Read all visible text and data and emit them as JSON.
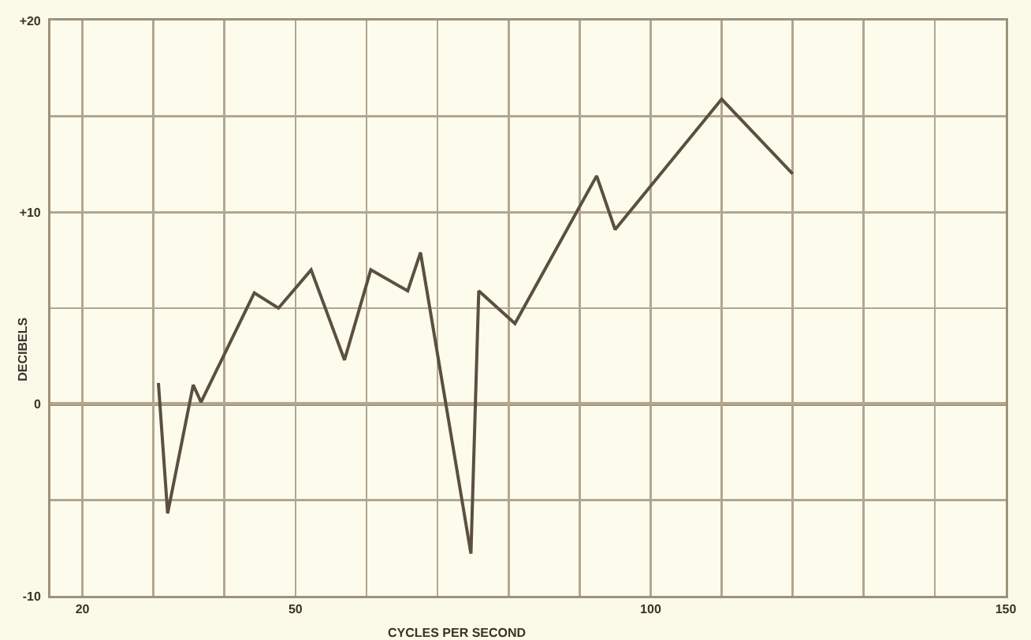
{
  "chart_data": {
    "type": "line",
    "xlabel": "CYCLES PER SECOND",
    "ylabel": "DECIBELS",
    "x": [
      30.7,
      32,
      35.6,
      36.7,
      44.2,
      47.6,
      52.2,
      56.9,
      60.6,
      65.8,
      67.6,
      74.7,
      75.8,
      80.9,
      92.4,
      95,
      110,
      120
    ],
    "series": [
      {
        "color": "#5b5040",
        "values": [
          1.1,
          -5.7,
          1,
          0.1,
          5.8,
          5,
          7,
          2.3,
          7,
          5.9,
          7.9,
          -7.8,
          5.9,
          4.2,
          11.9,
          9.1,
          15.9,
          12
        ]
      }
    ],
    "xlim": [
      15.5,
      150
    ],
    "ylim": [
      -10,
      20
    ],
    "xticks": [
      20,
      {
        "value": 30,
        "label": null
      },
      {
        "value": 40,
        "label": null
      },
      50,
      {
        "value": 60,
        "label": null
      },
      {
        "value": 70,
        "label": null
      },
      {
        "value": 80,
        "label": null
      },
      {
        "value": 90,
        "label": null
      },
      100,
      {
        "value": 110,
        "label": null
      },
      {
        "value": 120,
        "label": null
      },
      {
        "value": 130,
        "label": null
      },
      {
        "value": 140,
        "label": null
      },
      150
    ],
    "yticks": [
      -10,
      {
        "value": -5,
        "label": null
      },
      0,
      {
        "value": 5,
        "label": null
      },
      {
        "value": 10,
        "label": "+10"
      },
      {
        "value": 15,
        "label": null
      },
      {
        "value": 20,
        "label": "+20"
      }
    ],
    "grid": true,
    "marker": "none",
    "line_style": "solid",
    "ref_lines": [
      {
        "axis": "y",
        "value": 0,
        "color": "#6b5e4b"
      }
    ]
  }
}
